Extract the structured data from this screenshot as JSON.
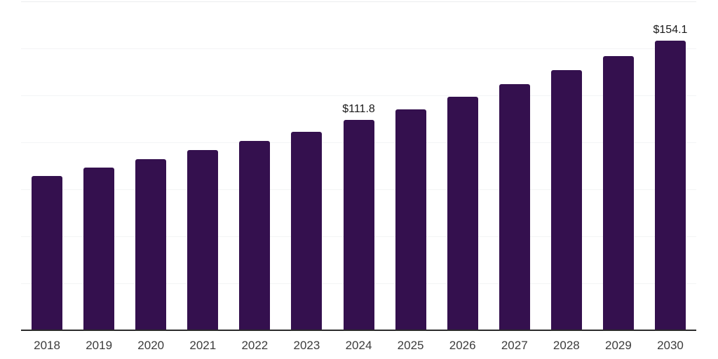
{
  "chart_data": {
    "type": "bar",
    "title": "",
    "xlabel": "",
    "ylabel": "",
    "categories": [
      "2018",
      "2019",
      "2020",
      "2021",
      "2022",
      "2023",
      "2024",
      "2025",
      "2026",
      "2027",
      "2028",
      "2029",
      "2030"
    ],
    "values": [
      82.2,
      86.7,
      91.1,
      96.0,
      100.8,
      105.6,
      111.8,
      117.6,
      124.3,
      131.0,
      138.5,
      145.9,
      154.1
    ],
    "data_labels": {
      "2024": "$111.8",
      "2030": "$154.1"
    },
    "ylim": [
      0,
      175
    ],
    "gridline_interval": 25,
    "grid": "horizontal",
    "y_tick_labels_visible": false,
    "legend": "none",
    "colors": {
      "bar": "#34104e",
      "axis_line": "#2b2b2b",
      "gridline": "#f3f4f5",
      "top_gridline": "#ebedef",
      "tick_label": "#3c3c3c",
      "data_label": "#1a1a1a",
      "background": "#ffffff"
    }
  }
}
